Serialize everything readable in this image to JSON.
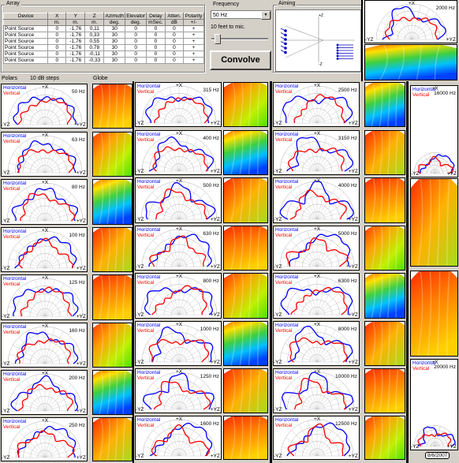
{
  "array_group": {
    "label": "Array",
    "columns": [
      {
        "name": "Device",
        "unit": ""
      },
      {
        "name": "X",
        "unit": "m."
      },
      {
        "name": "Y",
        "unit": "m."
      },
      {
        "name": "Z",
        "unit": "m."
      },
      {
        "name": "Azimuth",
        "unit": "deg."
      },
      {
        "name": "Elevator",
        "unit": "deg."
      },
      {
        "name": "Delay",
        "unit": "mSec."
      },
      {
        "name": "Atten.",
        "unit": "dB"
      },
      {
        "name": "Polarity",
        "unit": "+/-"
      }
    ],
    "rows": [
      [
        "Point Source",
        "0",
        "-1,76",
        "0,11",
        "30",
        "0",
        "0",
        "0",
        "+"
      ],
      [
        "Point Source",
        "0",
        "-1,76",
        "0,33",
        "30",
        "0",
        "0",
        "0",
        "+"
      ],
      [
        "Point Source",
        "0",
        "-1,76",
        "0,55",
        "30",
        "0",
        "0",
        "0",
        "+"
      ],
      [
        "Point Source",
        "0",
        "-1,76",
        "0,78",
        "30",
        "0",
        "0",
        "0",
        "+"
      ],
      [
        "Point Source",
        "0",
        "-1,76",
        "-0,11",
        "30",
        "0",
        "0",
        "0",
        "+"
      ],
      [
        "Point Source",
        "0",
        "-1,76",
        "-0,33",
        "30",
        "0",
        "0",
        "0",
        "+"
      ]
    ]
  },
  "frequency_group": {
    "label": "Frequency",
    "selected": "50 Hz",
    "distance_label": "10 feet to mic.",
    "convolve_label": "Convolve"
  },
  "aiming_group": {
    "label": "Aiming",
    "axis_top": "+Z",
    "axis_bottom": "-Z"
  },
  "labels": {
    "polars": "Polars",
    "steps": "10 dB steps",
    "globe": "Globe",
    "horizontal": "Horizontal",
    "vertical": "Vertical",
    "plus_x": "+X",
    "minus_yz": "-YZ",
    "plus_yz": "+YZ",
    "minus_z": "-Z"
  },
  "panels": {
    "col1": [
      "50 Hz",
      "63 Hz",
      "80 Hz",
      "100 Hz",
      "125 Hz",
      "160 Hz",
      "200 Hz",
      "250 Hz"
    ],
    "col2": [
      "315 Hz",
      "400 Hz",
      "500 Hz",
      "630 Hz",
      "800 Hz",
      "1000 Hz",
      "1250 Hz",
      "1600 Hz"
    ],
    "col3": [
      "2500 Hz",
      "3150 Hz",
      "4000 Hz",
      "5000 Hz",
      "6300 Hz",
      "8000 Hz",
      "10000 Hz",
      "12500 Hz"
    ],
    "top_right": "2000 Hz",
    "right_upper": "16000 Hz",
    "right_lower": "20000 Hz"
  },
  "date_badge": "8/6/2007",
  "colors": {
    "horizontal": "#0000ff",
    "vertical": "#ff0000",
    "background": "#d4d0c8"
  }
}
